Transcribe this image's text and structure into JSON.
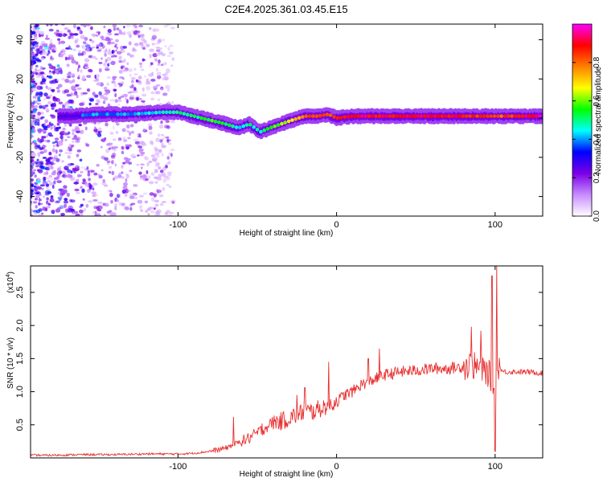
{
  "chart_data": [
    {
      "type": "heatmap",
      "title": "C2E4.2025.361.03.45.E15",
      "xlabel": "Height of straight line (km)",
      "ylabel": "Frequency (Hz)",
      "xlim": [
        -193,
        130
      ],
      "ylim": [
        -50,
        48
      ],
      "xticks": [
        -100,
        0,
        100
      ],
      "xtick_labels": [
        "-100",
        "0",
        "100"
      ],
      "yticks": [
        -40,
        -20,
        0,
        20,
        40
      ],
      "ytick_labels": [
        "-40",
        "-20",
        "0",
        "20",
        "40"
      ],
      "colorbar": {
        "label": "Normalized spectral amplitude",
        "range": [
          0,
          1
        ],
        "ticks": [
          0.0,
          0.2,
          0.4,
          0.6,
          0.8
        ],
        "tick_labels": [
          "0.0",
          "0.2",
          "0.4",
          "0.6",
          "0.8"
        ],
        "colors": [
          "#ffffff",
          "#c88cff",
          "#7a00e6",
          "#0000ff",
          "#00ffff",
          "#00ff00",
          "#ffff00",
          "#ff8000",
          "#ff0000",
          "#ff00ff"
        ]
      },
      "ridge": {
        "x": [
          -170,
          -150,
          -130,
          -110,
          -100,
          -90,
          -80,
          -70,
          -62,
          -55,
          -48,
          -42,
          -35,
          -28,
          -20,
          -12,
          -5,
          0,
          10,
          30,
          60,
          80,
          100,
          130
        ],
        "freq": [
          1,
          2,
          2,
          3,
          3,
          1,
          -1,
          -3,
          -5,
          -3,
          -7,
          -5,
          -3,
          -1,
          1,
          1,
          2,
          0,
          1,
          1,
          1,
          1,
          1,
          1
        ],
        "amplitude": [
          0.35,
          0.4,
          0.4,
          0.45,
          0.5,
          0.5,
          0.55,
          0.55,
          0.4,
          0.5,
          0.45,
          0.55,
          0.6,
          0.7,
          0.8,
          0.85,
          0.8,
          0.85,
          0.9,
          0.9,
          0.9,
          0.9,
          0.8,
          0.95
        ]
      }
    },
    {
      "type": "line",
      "xlabel": "Height of straight line (km)",
      "ylabel": "SNR (10 * v/v)",
      "multiplier_label": "(x10",
      "multiplier_exp": "4",
      "multiplier_close": ")",
      "xlim": [
        -193,
        130
      ],
      "ylim": [
        0,
        2.9
      ],
      "xticks": [
        -100,
        0,
        100
      ],
      "xtick_labels": [
        "-100",
        "0",
        "100"
      ],
      "yticks": [
        0.5,
        1.0,
        1.5,
        2.0,
        2.5
      ],
      "ytick_labels": [
        "0.5",
        "1.0",
        "1.5",
        "2.0",
        "2.5"
      ],
      "line_color": "#e83030",
      "series": [
        {
          "name": "SNR",
          "x": [
            -193,
            -180,
            -160,
            -140,
            -120,
            -100,
            -90,
            -80,
            -75,
            -70,
            -65,
            -60,
            -55,
            -50,
            -45,
            -40,
            -35,
            -30,
            -25,
            -20,
            -15,
            -10,
            -5,
            0,
            5,
            10,
            15,
            20,
            25,
            30,
            40,
            50,
            60,
            70,
            80,
            85,
            90,
            95,
            98,
            100,
            102,
            105,
            110,
            120,
            130
          ],
          "y": [
            0.04,
            0.04,
            0.05,
            0.05,
            0.06,
            0.06,
            0.07,
            0.1,
            0.12,
            0.15,
            0.2,
            0.25,
            0.3,
            0.38,
            0.45,
            0.55,
            0.55,
            0.6,
            0.65,
            0.7,
            0.7,
            0.75,
            0.8,
            0.85,
            0.95,
            1.0,
            1.1,
            1.15,
            1.2,
            1.25,
            1.3,
            1.32,
            1.35,
            1.35,
            1.38,
            1.4,
            1.35,
            1.3,
            1.2,
            1.0,
            1.4,
            1.3,
            1.3,
            1.3,
            1.28
          ]
        }
      ],
      "spikes": [
        {
          "x": -65,
          "y": 0.62
        },
        {
          "x": -47,
          "y": 0.52
        },
        {
          "x": -25,
          "y": 0.95
        },
        {
          "x": -20,
          "y": 1.06
        },
        {
          "x": -5,
          "y": 1.45
        },
        {
          "x": 20,
          "y": 1.5
        },
        {
          "x": 27,
          "y": 1.65
        },
        {
          "x": 85,
          "y": 1.98
        },
        {
          "x": 91,
          "y": 1.92
        },
        {
          "x": 98,
          "y": 2.75
        },
        {
          "x": 101,
          "y": 2.9
        },
        {
          "x": 100,
          "y": 0.1
        }
      ]
    }
  ]
}
